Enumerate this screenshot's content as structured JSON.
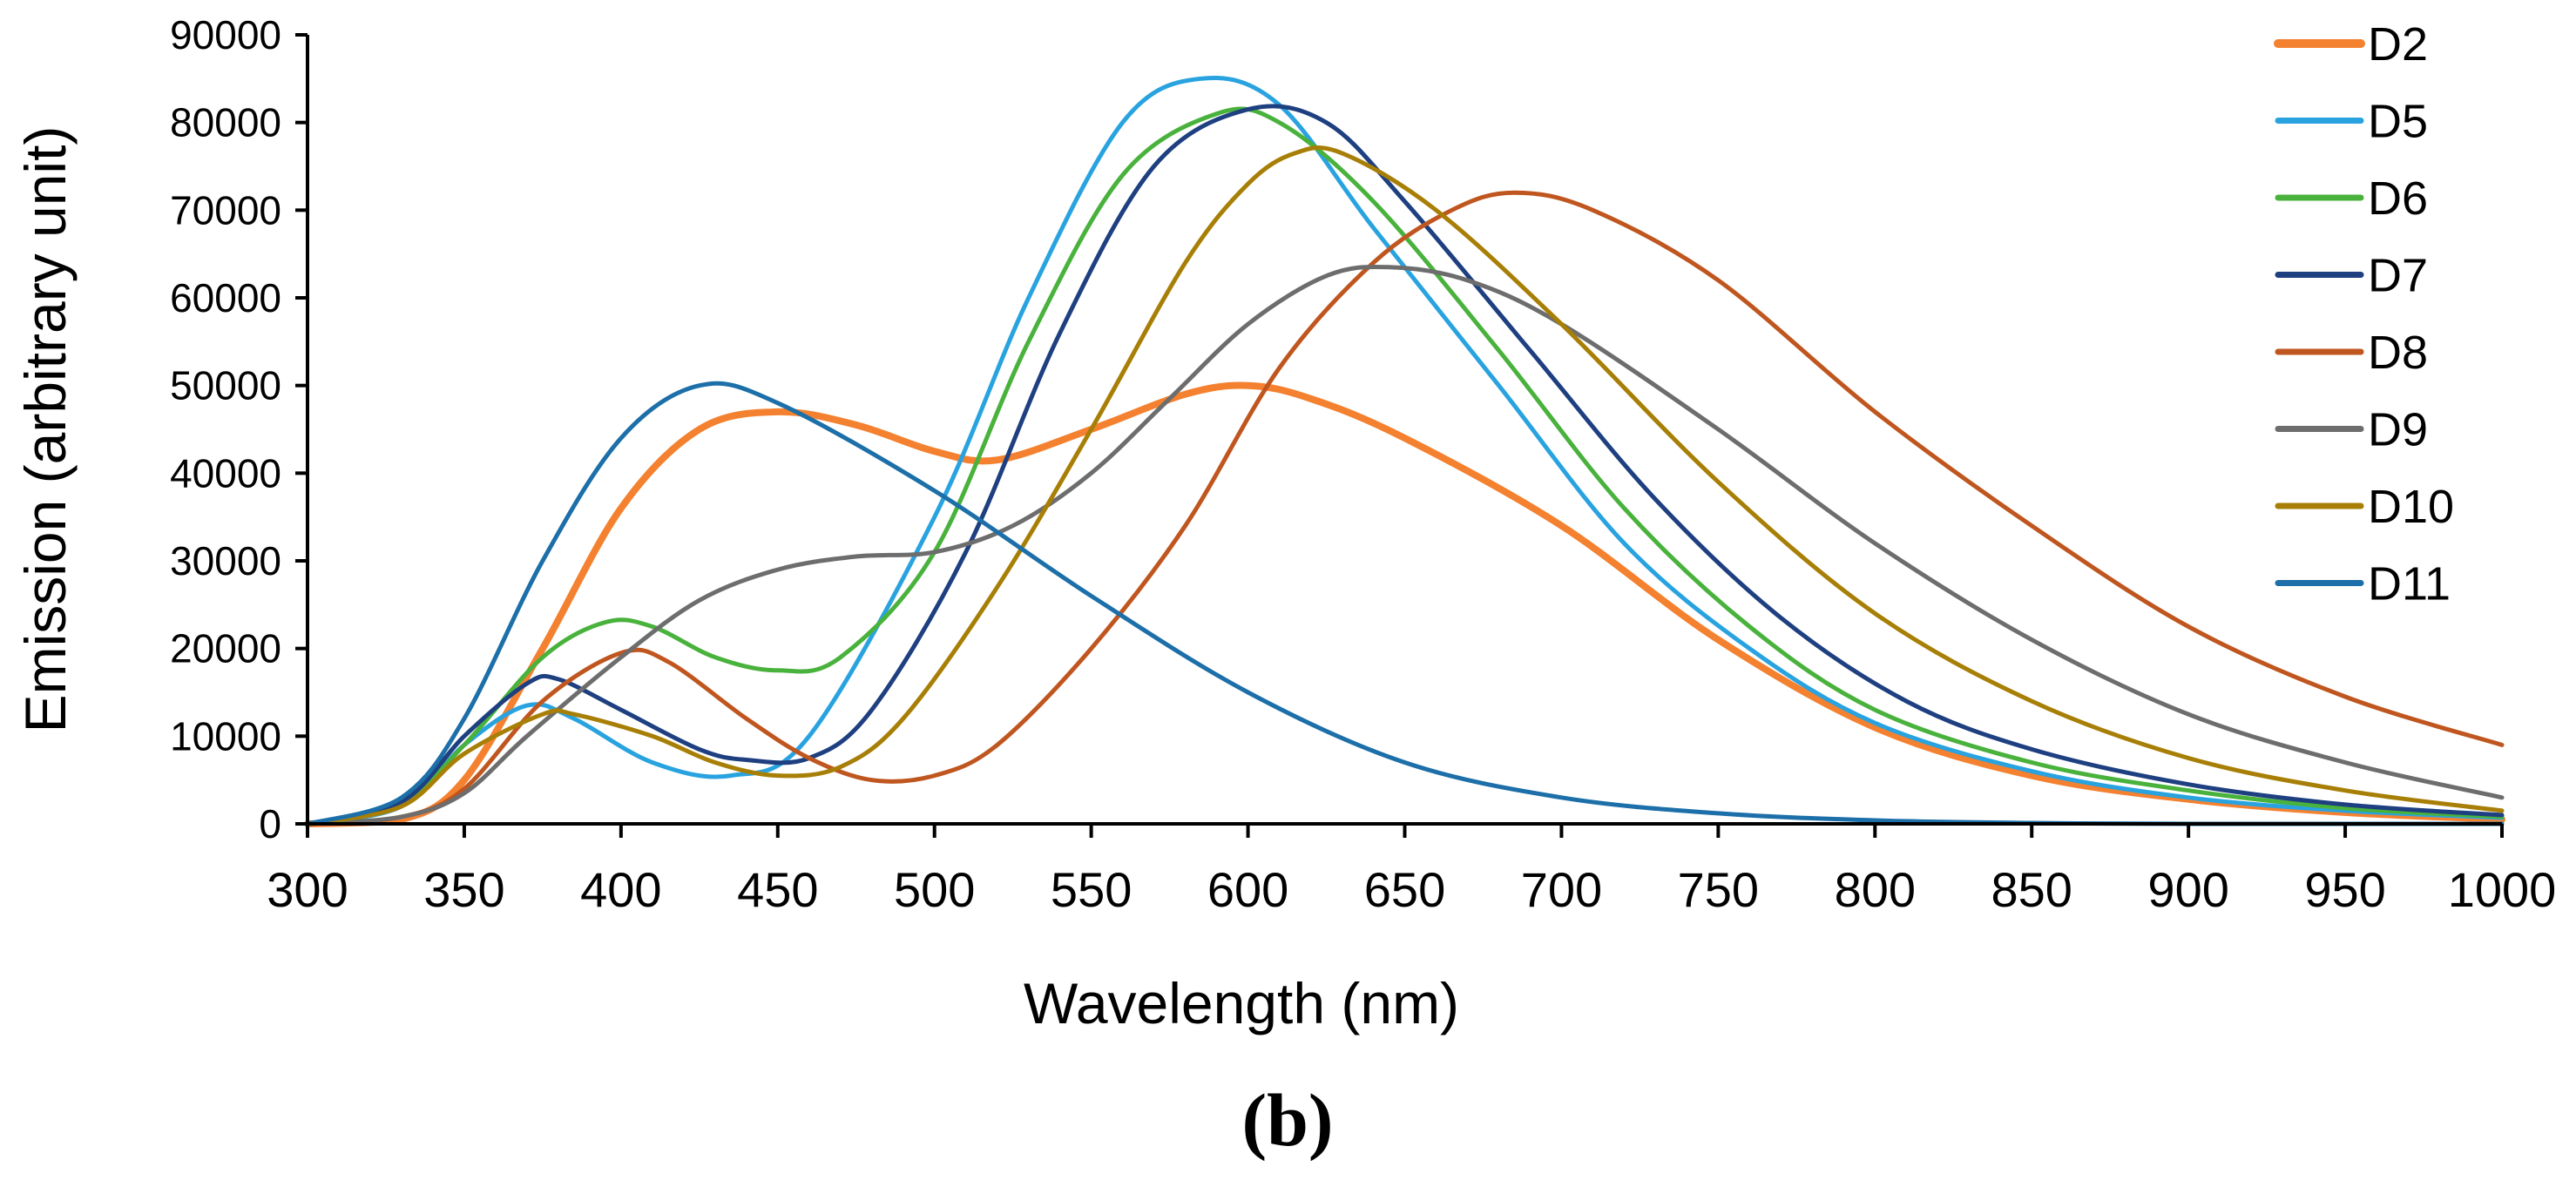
{
  "chart_data": {
    "type": "line",
    "title": "",
    "xlabel": "Wavelength (nm)",
    "ylabel": "Emission (arbitrary unit)",
    "caption": "(b)",
    "xlim": [
      300,
      1000
    ],
    "ylim": [
      0,
      90000
    ],
    "xticks": [
      300,
      350,
      400,
      450,
      500,
      550,
      600,
      650,
      700,
      750,
      800,
      850,
      900,
      950,
      1000
    ],
    "yticks": [
      0,
      10000,
      20000,
      30000,
      40000,
      50000,
      60000,
      70000,
      80000,
      90000
    ],
    "xtick_labels": [
      "300",
      "350",
      "400",
      "450",
      "500",
      "550",
      "600",
      "650",
      "700",
      "750",
      "800",
      "850",
      "900",
      "950",
      "1000"
    ],
    "ytick_labels": [
      "0",
      "10000",
      "20000",
      "30000",
      "40000",
      "50000",
      "60000",
      "70000",
      "80000",
      "90000"
    ],
    "grid": false,
    "legend_position": "right",
    "series": [
      {
        "name": "D2",
        "color": "#F4812F",
        "width": 8,
        "points": [
          [
            300,
            0
          ],
          [
            330,
            500
          ],
          [
            350,
            5000
          ],
          [
            375,
            20000
          ],
          [
            400,
            36000
          ],
          [
            425,
            45000
          ],
          [
            450,
            47000
          ],
          [
            475,
            45500
          ],
          [
            500,
            42500
          ],
          [
            520,
            41500
          ],
          [
            550,
            45000
          ],
          [
            580,
            49000
          ],
          [
            600,
            50000
          ],
          [
            620,
            48500
          ],
          [
            650,
            44000
          ],
          [
            700,
            34000
          ],
          [
            750,
            21000
          ],
          [
            800,
            11000
          ],
          [
            850,
            5500
          ],
          [
            900,
            2800
          ],
          [
            950,
            1300
          ],
          [
            1000,
            500
          ]
        ]
      },
      {
        "name": "D5",
        "color": "#29A3E0",
        "width": 5,
        "points": [
          [
            300,
            0
          ],
          [
            330,
            2000
          ],
          [
            350,
            9000
          ],
          [
            370,
            13500
          ],
          [
            385,
            12000
          ],
          [
            410,
            7000
          ],
          [
            435,
            5500
          ],
          [
            460,
            10000
          ],
          [
            500,
            35000
          ],
          [
            530,
            60000
          ],
          [
            560,
            80000
          ],
          [
            585,
            85000
          ],
          [
            610,
            82000
          ],
          [
            640,
            68000
          ],
          [
            680,
            50000
          ],
          [
            720,
            32000
          ],
          [
            760,
            20000
          ],
          [
            800,
            11500
          ],
          [
            850,
            6000
          ],
          [
            900,
            3000
          ],
          [
            950,
            1500
          ],
          [
            1000,
            700
          ]
        ]
      },
      {
        "name": "D6",
        "color": "#49B23C",
        "width": 5,
        "points": [
          [
            300,
            0
          ],
          [
            330,
            2500
          ],
          [
            350,
            9000
          ],
          [
            375,
            19000
          ],
          [
            395,
            23000
          ],
          [
            410,
            22500
          ],
          [
            430,
            19000
          ],
          [
            450,
            17500
          ],
          [
            470,
            19000
          ],
          [
            500,
            31000
          ],
          [
            530,
            55000
          ],
          [
            560,
            74000
          ],
          [
            590,
            81000
          ],
          [
            610,
            80000
          ],
          [
            640,
            71000
          ],
          [
            680,
            54000
          ],
          [
            720,
            36000
          ],
          [
            760,
            22500
          ],
          [
            800,
            13000
          ],
          [
            850,
            7000
          ],
          [
            900,
            3800
          ],
          [
            950,
            1800
          ],
          [
            1000,
            800
          ]
        ]
      },
      {
        "name": "D7",
        "color": "#1E3F80",
        "width": 5,
        "points": [
          [
            300,
            0
          ],
          [
            330,
            2500
          ],
          [
            350,
            10000
          ],
          [
            370,
            16000
          ],
          [
            380,
            16500
          ],
          [
            400,
            13000
          ],
          [
            425,
            8500
          ],
          [
            440,
            7300
          ],
          [
            460,
            7500
          ],
          [
            480,
            13000
          ],
          [
            510,
            31000
          ],
          [
            540,
            56000
          ],
          [
            570,
            75000
          ],
          [
            600,
            81500
          ],
          [
            625,
            80000
          ],
          [
            650,
            71000
          ],
          [
            690,
            54000
          ],
          [
            730,
            37000
          ],
          [
            770,
            23500
          ],
          [
            810,
            14000
          ],
          [
            850,
            8500
          ],
          [
            900,
            4500
          ],
          [
            950,
            2200
          ],
          [
            1000,
            1000
          ]
        ]
      },
      {
        "name": "D8",
        "color": "#C0561F",
        "width": 5,
        "points": [
          [
            300,
            0
          ],
          [
            330,
            800
          ],
          [
            350,
            4000
          ],
          [
            375,
            14000
          ],
          [
            400,
            19500
          ],
          [
            415,
            18500
          ],
          [
            440,
            12000
          ],
          [
            460,
            7500
          ],
          [
            480,
            5000
          ],
          [
            500,
            5500
          ],
          [
            520,
            9000
          ],
          [
            550,
            20000
          ],
          [
            580,
            34000
          ],
          [
            610,
            52000
          ],
          [
            640,
            64000
          ],
          [
            665,
            70000
          ],
          [
            685,
            72000
          ],
          [
            710,
            70000
          ],
          [
            750,
            62000
          ],
          [
            800,
            47000
          ],
          [
            850,
            34000
          ],
          [
            900,
            22500
          ],
          [
            950,
            14500
          ],
          [
            1000,
            9000
          ]
        ]
      },
      {
        "name": "D9",
        "color": "#6D6D6D",
        "width": 5,
        "points": [
          [
            300,
            0
          ],
          [
            330,
            800
          ],
          [
            350,
            3500
          ],
          [
            370,
            10000
          ],
          [
            400,
            19000
          ],
          [
            425,
            25500
          ],
          [
            450,
            29000
          ],
          [
            475,
            30500
          ],
          [
            500,
            31000
          ],
          [
            525,
            34000
          ],
          [
            550,
            40000
          ],
          [
            575,
            48500
          ],
          [
            600,
            57000
          ],
          [
            625,
            62500
          ],
          [
            645,
            63500
          ],
          [
            670,
            62000
          ],
          [
            700,
            57000
          ],
          [
            750,
            45000
          ],
          [
            800,
            32000
          ],
          [
            850,
            21000
          ],
          [
            900,
            12500
          ],
          [
            950,
            7000
          ],
          [
            1000,
            3000
          ]
        ]
      },
      {
        "name": "D10",
        "color": "#A87F06",
        "width": 5,
        "points": [
          [
            300,
            0
          ],
          [
            330,
            2000
          ],
          [
            350,
            8000
          ],
          [
            375,
            12500
          ],
          [
            385,
            12500
          ],
          [
            410,
            10000
          ],
          [
            430,
            7000
          ],
          [
            450,
            5500
          ],
          [
            470,
            6500
          ],
          [
            490,
            12000
          ],
          [
            520,
            27000
          ],
          [
            550,
            45000
          ],
          [
            580,
            64000
          ],
          [
            600,
            73000
          ],
          [
            615,
            76500
          ],
          [
            630,
            76500
          ],
          [
            660,
            70000
          ],
          [
            700,
            57000
          ],
          [
            750,
            39000
          ],
          [
            800,
            24000
          ],
          [
            850,
            14000
          ],
          [
            900,
            7500
          ],
          [
            950,
            3800
          ],
          [
            1000,
            1500
          ]
        ]
      },
      {
        "name": "D11",
        "color": "#1C6FA8",
        "width": 5,
        "points": [
          [
            300,
            0
          ],
          [
            330,
            3000
          ],
          [
            350,
            12000
          ],
          [
            375,
            30000
          ],
          [
            400,
            44000
          ],
          [
            425,
            50000
          ],
          [
            450,
            48000
          ],
          [
            500,
            38000
          ],
          [
            550,
            26000
          ],
          [
            600,
            15000
          ],
          [
            650,
            7000
          ],
          [
            700,
            3000
          ],
          [
            750,
            1200
          ],
          [
            800,
            400
          ],
          [
            850,
            100
          ],
          [
            900,
            0
          ],
          [
            1000,
            0
          ]
        ]
      }
    ]
  }
}
